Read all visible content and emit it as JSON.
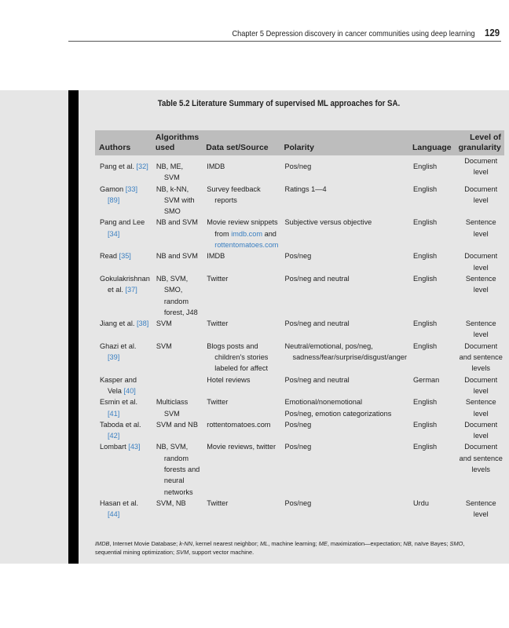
{
  "running_head": {
    "chapter": "Chapter 5 Depression discovery in cancer communities using deep learning",
    "page": "129"
  },
  "table": {
    "title": "Table 5.2 Literature Summary of supervised ML approaches for SA.",
    "headers": [
      "Authors",
      "Algorithms used",
      "Data set/Source",
      "Polarity",
      "Language",
      "Level of granularity"
    ],
    "rows": [
      {
        "authors": "Pang et al. ",
        "refs": [
          "[32]"
        ],
        "algorithms": "NB, ME, SVM",
        "data": "IMDB",
        "polarity": "Pos/neg",
        "language": "English",
        "level": "Document level"
      },
      {
        "authors": "Gamon ",
        "refs": [
          "[33]",
          "[89]"
        ],
        "algorithms": "NB, k-NN, SVM with SMO",
        "data": "Survey feedback reports",
        "polarity": "Ratings 1—4",
        "language": "English",
        "level": "Document level"
      },
      {
        "authors": "Pang and Lee ",
        "refs": [
          "[34]"
        ],
        "algorithms": "NB and SVM",
        "data": "Movie review snippets from ",
        "data_links": [
          "imdb.com",
          "rottentomatoes.com"
        ],
        "data_mid": " and ",
        "polarity": "Subjective versus objective",
        "language": "English",
        "level": "Sentence level"
      },
      {
        "authors": "Read ",
        "refs": [
          "[35]"
        ],
        "algorithms": "NB and SVM",
        "data": "IMDB",
        "polarity": "Pos/neg",
        "language": "English",
        "level": "Document level"
      },
      {
        "authors": "Gokulakrishnan et al. ",
        "refs": [
          "[37]"
        ],
        "algorithms": "NB, SVM, SMO, random forest, J48",
        "data": "Twitter",
        "polarity": "Pos/neg and neutral",
        "language": "English",
        "level": "Sentence level"
      },
      {
        "authors": "Jiang et al. ",
        "refs": [
          "[38]"
        ],
        "algorithms": "SVM",
        "data": "Twitter",
        "polarity": "Pos/neg and neutral",
        "language": "English",
        "level": "Sentence level"
      },
      {
        "authors": "Ghazi et al. ",
        "refs": [
          "[39]"
        ],
        "algorithms": "SVM",
        "data": "Blogs posts and children's stories labeled for affect",
        "polarity": "Neutral/emotional, pos/neg, sadness/fear/surprise/disgust/anger",
        "language": "English",
        "level": "Document and sentence levels"
      },
      {
        "authors": "Kasper and Vela ",
        "refs": [
          "[40]"
        ],
        "algorithms": "",
        "data": "Hotel reviews",
        "polarity": "Pos/neg and neutral",
        "language": "German",
        "level": "Document level"
      },
      {
        "authors": "Esmin et al. ",
        "refs": [
          "[41]"
        ],
        "algorithms": "Multiclass SVM",
        "data": "Twitter",
        "polarity": "Emotional/nonemotional",
        "polarity2": "Pos/neg, emotion categorizations",
        "language": "English",
        "level": "Sentence level"
      },
      {
        "authors": "Taboda et al. ",
        "refs": [
          "[42]"
        ],
        "algorithms": "SVM and NB",
        "data": "rottentomatoes.com",
        "polarity": "Pos/neg",
        "language": "English",
        "level": "Document level"
      },
      {
        "authors": "Lombart ",
        "refs": [
          "[43]"
        ],
        "algorithms": "NB, SVM, random forests and neural networks",
        "data": "Movie reviews, twitter",
        "polarity": "Pos/neg",
        "language": "English",
        "level": "Document and sentence levels"
      },
      {
        "authors": "Hasan et al. ",
        "refs": [
          "[44]"
        ],
        "algorithms": "SVM, NB",
        "data": "Twitter",
        "polarity": "Pos/neg",
        "language": "Urdu",
        "level": "Sentence level"
      }
    ],
    "footnote": [
      {
        "abbr": "IMDB",
        "def": ", Internet Movie Database; "
      },
      {
        "abbr": "k-NN",
        "def": ", kernel nearest neighbor; "
      },
      {
        "abbr": "ML",
        "def": ", machine learning; "
      },
      {
        "abbr": "ME",
        "def": ", maximization—expectation; "
      },
      {
        "abbr": "NB",
        "def": ", naïve Bayes; "
      },
      {
        "abbr": "SMO",
        "def": ", sequential mining optimization; "
      },
      {
        "abbr": "SVM",
        "def": ", support vector machine."
      }
    ]
  },
  "colors": {
    "link": "#3a7fc1",
    "panel": "#e6e6e6",
    "header": "#bdbdbd"
  }
}
